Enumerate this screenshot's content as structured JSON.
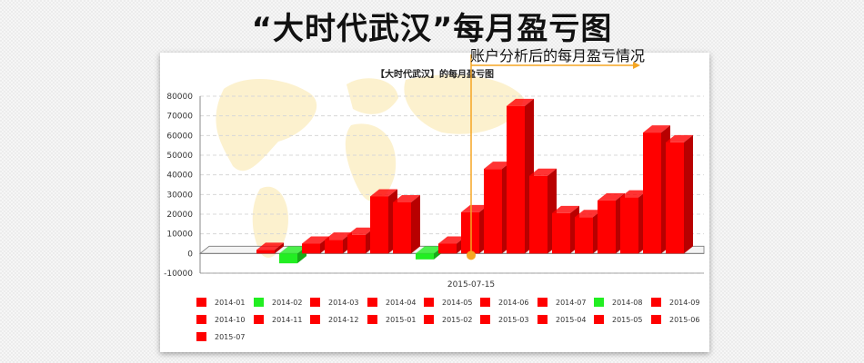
{
  "headline": "“大时代武汉”每月盈亏图",
  "annotation": "账户分析后的每月盈亏情况",
  "colors": {
    "profit": "#ff0000",
    "loss": "#22ee22",
    "accent": "#f5a623"
  },
  "chart_data": {
    "type": "bar",
    "title": "【大时代武汉】的每月盈亏图",
    "xlabel": "",
    "ylabel": "",
    "ylim": [
      -10000,
      80000
    ],
    "yticks": [
      -10000,
      0,
      10000,
      20000,
      30000,
      40000,
      50000,
      60000,
      70000,
      80000
    ],
    "x_marker_label": "2015-07-15",
    "legend_position": "bottom",
    "grid": true,
    "categories": [
      "2014-01",
      "2014-02",
      "2014-03",
      "2014-04",
      "2014-05",
      "2014-06",
      "2014-07",
      "2014-08",
      "2014-09",
      "2014-10",
      "2014-11",
      "2014-12",
      "2015-01",
      "2015-02",
      "2015-03",
      "2015-04",
      "2015-05",
      "2015-06",
      "2015-07"
    ],
    "values": [
      0,
      -5000,
      5000,
      7000,
      9500,
      29000,
      26000,
      -3000,
      5000,
      21000,
      43000,
      75000,
      39500,
      20500,
      18500,
      27000,
      28500,
      61500,
      56500
    ]
  }
}
